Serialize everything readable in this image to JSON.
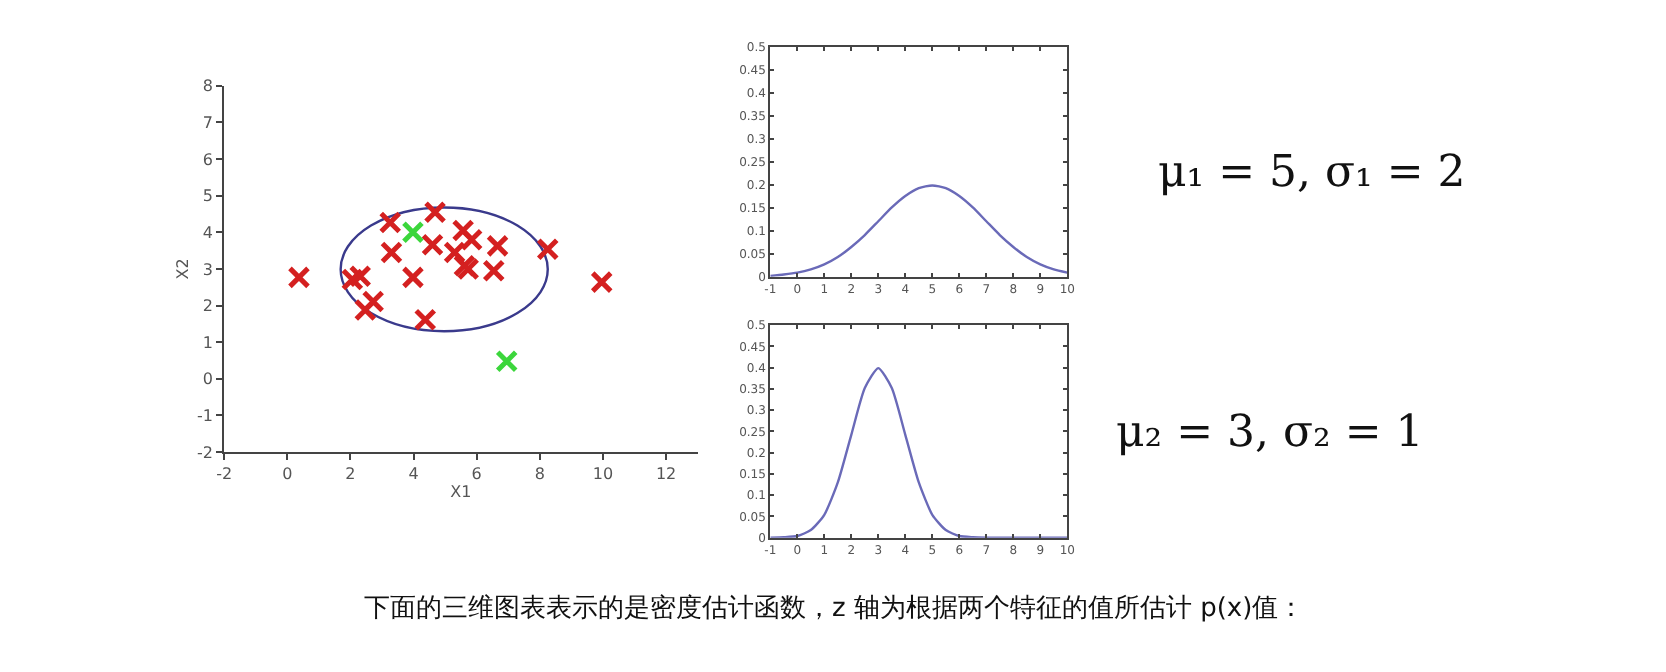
{
  "chart_data": [
    {
      "type": "scatter",
      "xlabel": "X1",
      "ylabel": "X2",
      "xlim": [
        -2,
        13
      ],
      "ylim": [
        -2,
        8
      ],
      "xticks": [
        -2,
        0,
        2,
        4,
        6,
        8,
        10,
        12
      ],
      "yticks": [
        -2,
        -1,
        0,
        1,
        2,
        3,
        4,
        5,
        6,
        7,
        8
      ],
      "grid": false,
      "marker": "cross",
      "series": [
        {
          "color": "#d42020",
          "x": [
            0.37,
            2.06,
            2.31,
            2.72,
            2.47,
            3.26,
            3.3,
            3.98,
            4.68,
            4.6,
            4.37,
            5.3,
            5.57,
            5.84,
            5.61,
            5.73,
            6.54,
            6.66,
            8.25,
            9.96
          ],
          "values": [
            2.77,
            2.71,
            2.8,
            2.11,
            1.88,
            4.27,
            3.45,
            2.77,
            4.55,
            3.66,
            1.61,
            3.45,
            4.05,
            3.8,
            3.09,
            3.0,
            2.95,
            3.63,
            3.54,
            2.64
          ]
        },
        {
          "color": "#3cd63c",
          "x": [
            3.98,
            6.95
          ],
          "values": [
            4.0,
            0.48
          ]
        }
      ],
      "annotations": [
        "下面的三维图表表示的是密度估计函数，z 轴为根据两个特征的值所估计 p(x)值："
      ]
    },
    {
      "type": "line",
      "xlim": [
        -1,
        10
      ],
      "ylim": [
        0,
        0.5
      ],
      "xticks": [
        -1,
        0,
        1,
        2,
        3,
        4,
        5,
        6,
        7,
        8,
        9,
        10
      ],
      "yticks": [
        0,
        0.05,
        0.1,
        0.15,
        0.2,
        0.25,
        0.3,
        0.35,
        0.4,
        0.45,
        0.5
      ],
      "grid": false,
      "series": [
        {
          "color": "#6a6ab8",
          "x": [
            -1,
            -0.5,
            0,
            0.5,
            1,
            1.5,
            2,
            2.5,
            3,
            3.5,
            4,
            4.5,
            5,
            5.5,
            6,
            6.5,
            7,
            7.5,
            8,
            8.5,
            9,
            9.5,
            10
          ],
          "values": [
            0.002,
            0.005,
            0.009,
            0.016,
            0.027,
            0.043,
            0.065,
            0.091,
            0.121,
            0.151,
            0.176,
            0.193,
            0.199,
            0.193,
            0.176,
            0.151,
            0.121,
            0.091,
            0.065,
            0.043,
            0.027,
            0.016,
            0.009
          ]
        }
      ],
      "annotations": [
        "μ₁ = 5, σ₁ = 2"
      ]
    },
    {
      "type": "line",
      "xlim": [
        -1,
        10
      ],
      "ylim": [
        0,
        0.5
      ],
      "xticks": [
        -1,
        0,
        1,
        2,
        3,
        4,
        5,
        6,
        7,
        8,
        9,
        10
      ],
      "yticks": [
        0,
        0.05,
        0.1,
        0.15,
        0.2,
        0.25,
        0.3,
        0.35,
        0.4,
        0.45,
        0.5
      ],
      "grid": false,
      "series": [
        {
          "color": "#6a6ab8",
          "x": [
            -1,
            -0.5,
            0,
            0.5,
            1,
            1.5,
            2,
            2.5,
            3,
            3.5,
            4,
            4.5,
            5,
            5.5,
            6,
            6.5,
            7,
            8,
            9,
            10
          ],
          "values": [
            0,
            0.001,
            0.004,
            0.018,
            0.054,
            0.13,
            0.242,
            0.352,
            0.399,
            0.352,
            0.242,
            0.13,
            0.054,
            0.018,
            0.004,
            0.001,
            0,
            0,
            0,
            0
          ]
        }
      ],
      "annotations": [
        "μ₂ = 3, σ₂ = 1"
      ]
    }
  ]
}
